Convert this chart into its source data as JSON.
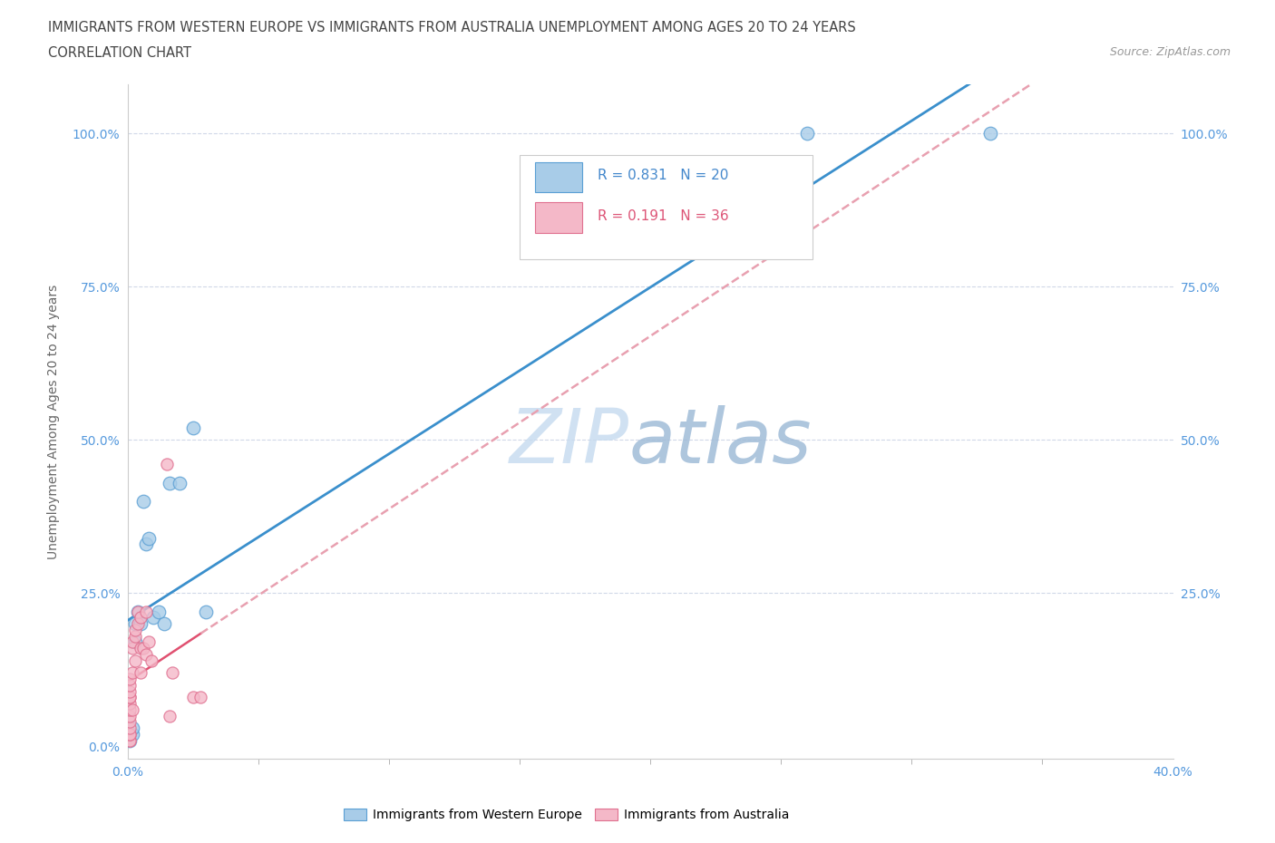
{
  "title_line1": "IMMIGRANTS FROM WESTERN EUROPE VS IMMIGRANTS FROM AUSTRALIA UNEMPLOYMENT AMONG AGES 20 TO 24 YEARS",
  "title_line2": "CORRELATION CHART",
  "source_text": "Source: ZipAtlas.com",
  "ylabel": "Unemployment Among Ages 20 to 24 years",
  "xlim": [
    0.0,
    0.4
  ],
  "ylim": [
    -0.02,
    1.08
  ],
  "yticks": [
    0.0,
    0.25,
    0.5,
    0.75,
    1.0
  ],
  "xtick_labels": [
    "0.0%",
    "40.0%"
  ],
  "xtick_positions": [
    0.0,
    0.4
  ],
  "r_western": 0.831,
  "n_western": 20,
  "r_australia": 0.191,
  "n_australia": 36,
  "western_europe_x": [
    0.001,
    0.001,
    0.002,
    0.002,
    0.003,
    0.003,
    0.004,
    0.005,
    0.006,
    0.007,
    0.008,
    0.01,
    0.012,
    0.014,
    0.016,
    0.02,
    0.025,
    0.03,
    0.26,
    0.33
  ],
  "western_europe_y": [
    0.01,
    0.02,
    0.02,
    0.03,
    0.17,
    0.2,
    0.22,
    0.2,
    0.4,
    0.33,
    0.34,
    0.21,
    0.22,
    0.2,
    0.43,
    0.43,
    0.52,
    0.22,
    1.0,
    1.0
  ],
  "australia_x": [
    0.001,
    0.001,
    0.001,
    0.001,
    0.001,
    0.001,
    0.001,
    0.001,
    0.001,
    0.001,
    0.001,
    0.001,
    0.001,
    0.001,
    0.002,
    0.002,
    0.002,
    0.002,
    0.003,
    0.003,
    0.003,
    0.004,
    0.004,
    0.005,
    0.005,
    0.005,
    0.006,
    0.007,
    0.007,
    0.008,
    0.009,
    0.015,
    0.016,
    0.017,
    0.025,
    0.028
  ],
  "australia_y": [
    0.01,
    0.01,
    0.02,
    0.02,
    0.03,
    0.04,
    0.05,
    0.06,
    0.07,
    0.08,
    0.08,
    0.09,
    0.1,
    0.11,
    0.06,
    0.12,
    0.16,
    0.17,
    0.14,
    0.18,
    0.19,
    0.2,
    0.22,
    0.12,
    0.16,
    0.21,
    0.16,
    0.15,
    0.22,
    0.17,
    0.14,
    0.46,
    0.05,
    0.12,
    0.08,
    0.08
  ],
  "blue_fill": "#a8cce8",
  "blue_edge": "#5a9fd4",
  "pink_fill": "#f4b8c8",
  "pink_edge": "#e07090",
  "blue_line_color": "#3a8fcc",
  "pink_solid_color": "#e05070",
  "pink_dash_color": "#e8a0b0",
  "grid_color": "#d0d8e8",
  "watermark_color_zip": "#c8dcf0",
  "watermark_color_atlas": "#a0bcd8",
  "bg_color": "#ffffff",
  "tick_color": "#5599dd",
  "legend_text_blue": "#4488cc",
  "legend_text_pink": "#dd5577",
  "legend_box_edge": "#cccccc"
}
